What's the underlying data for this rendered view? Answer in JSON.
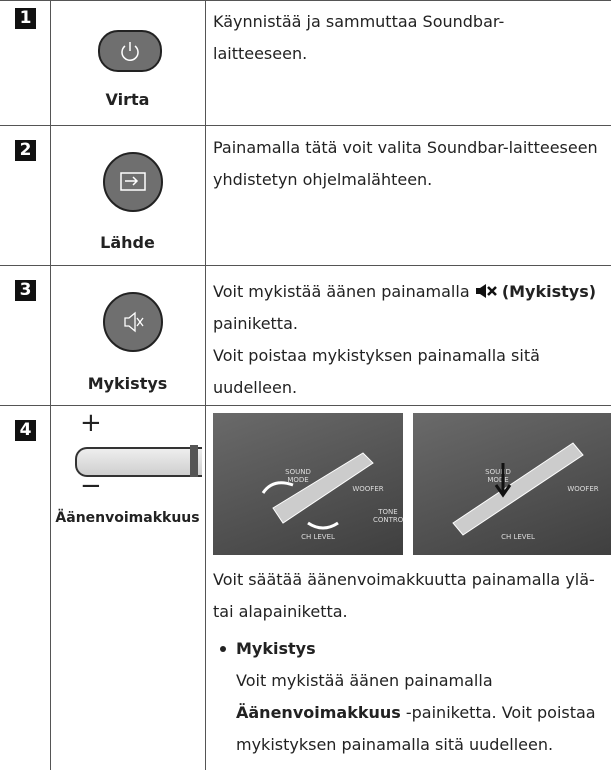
{
  "rows": [
    {
      "number": "1",
      "label": "Virta",
      "text": "Käynnistää ja sammuttaa Soundbar-laitteeseen."
    },
    {
      "number": "2",
      "label": "Lähde",
      "text": "Painamalla tätä voit valita Soundbar-laitteeseen yhdistetyn ohjelmalähteen."
    },
    {
      "number": "3",
      "label": "Mykistys",
      "text_before": "Voit mykistää äänen painamalla",
      "text_bold": "(Mykistys)",
      "text_after": "painiketta.",
      "text_2": "Voit poistaa mykistyksen painamalla sitä uudelleen."
    },
    {
      "number": "4",
      "plus": "+",
      "minus": "−",
      "label": "Äänenvoimakkuus",
      "images": [
        {
          "labels": [
            "SOUND MODE",
            "WOOFER",
            "TONE CONTROL",
            "CH LEVEL"
          ]
        },
        {
          "labels": [
            "SOUND MODE",
            "WOOFER",
            "CH LEVEL"
          ]
        }
      ],
      "text": "Voit säätää äänenvoimakkuutta painamalla ylä- tai alapainiketta.",
      "bullet_title": "Mykistys",
      "bullet_before": "Voit mykistää äänen painamalla",
      "bullet_bold": "Äänenvoimakkuus",
      "bullet_after": "-painiketta. Voit poistaa mykistyksen painamalla sitä uudelleen."
    }
  ]
}
